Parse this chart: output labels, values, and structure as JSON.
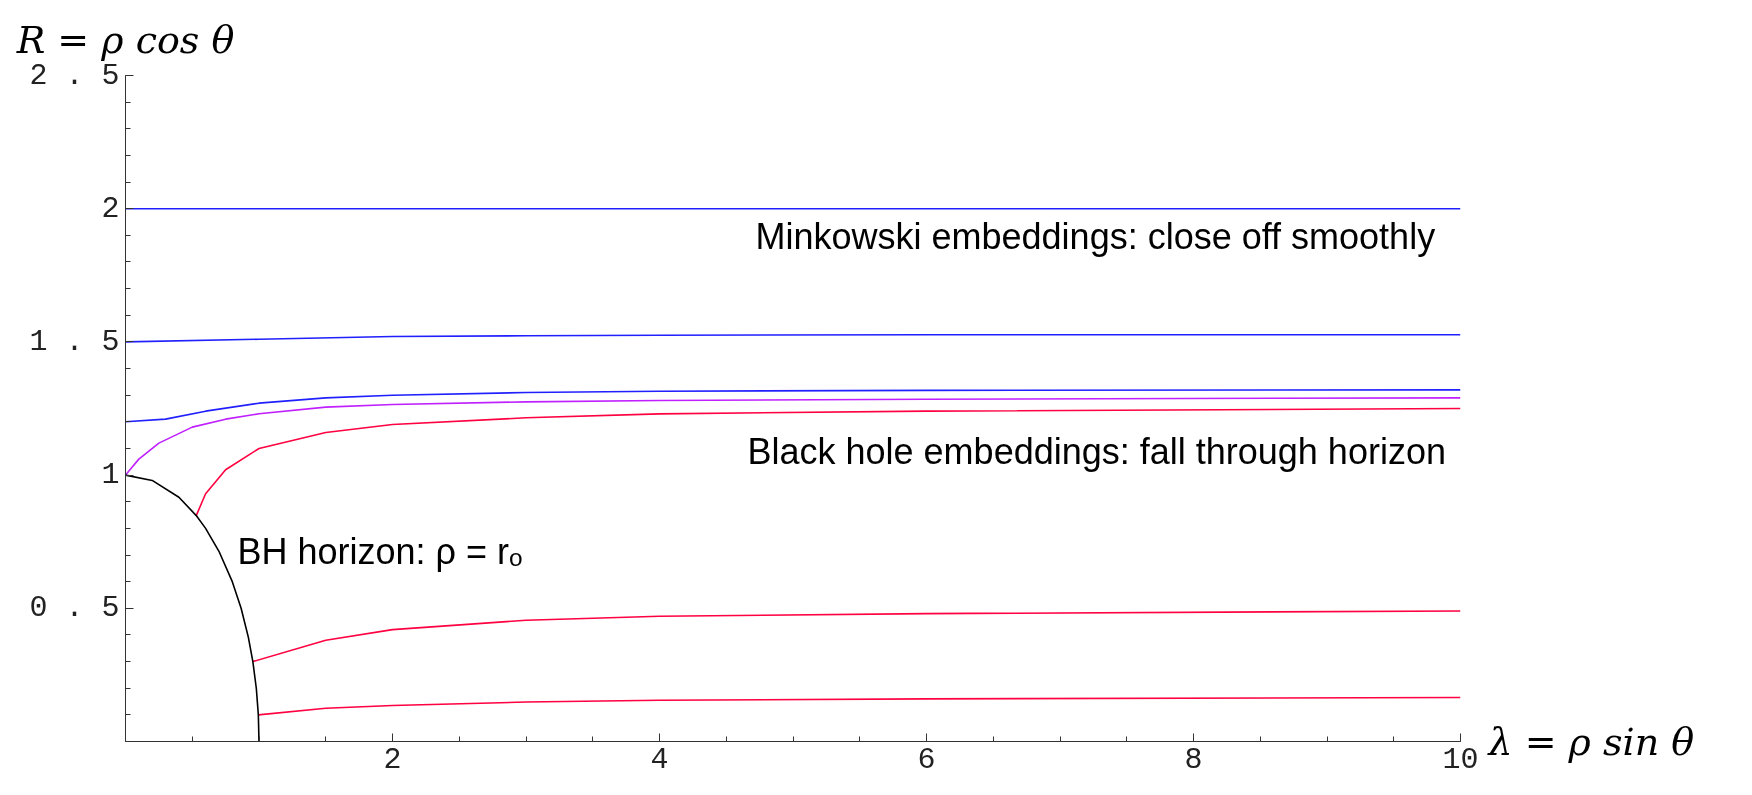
{
  "chart_data": {
    "type": "line",
    "xlabel": "λ = ρ sin θ",
    "ylabel": "R = ρ cos θ",
    "xlim": [
      0,
      10
    ],
    "ylim": [
      0,
      2.5
    ],
    "xticks": [
      2,
      4,
      6,
      8,
      10
    ],
    "yticks": [
      {
        "value": 0.5,
        "label": "0 . 5"
      },
      1,
      {
        "value": 1.5,
        "label": "1 . 5"
      },
      2,
      {
        "value": 2.5,
        "label": "2 . 5"
      }
    ],
    "grid": false,
    "marker": "none",
    "line_style": "solid",
    "series": [
      {
        "color": "#2020ff",
        "x": [
          0,
          1,
          2,
          4,
          6,
          10
        ],
        "values": [
          2.0,
          2.0,
          2.0,
          2.0,
          2.0,
          2.0
        ]
      },
      {
        "color": "#2020ff",
        "x": [
          0,
          1,
          2,
          3,
          4,
          6,
          10
        ],
        "values": [
          1.5,
          1.51,
          1.52,
          1.523,
          1.525,
          1.527,
          1.527
        ]
      },
      {
        "color": "#2020ff",
        "x": [
          0,
          0.3,
          0.6,
          1,
          1.5,
          2,
          3,
          4,
          6,
          10
        ],
        "values": [
          1.2,
          1.21,
          1.24,
          1.27,
          1.29,
          1.3,
          1.31,
          1.315,
          1.318,
          1.32
        ]
      },
      {
        "color": "#c020ff",
        "x": [
          0,
          0.1,
          0.25,
          0.5,
          0.75,
          1,
          1.5,
          2,
          3,
          4,
          6,
          10
        ],
        "values": [
          1.0,
          1.06,
          1.12,
          1.18,
          1.21,
          1.23,
          1.255,
          1.265,
          1.275,
          1.28,
          1.285,
          1.29
        ]
      },
      {
        "color": "#ff0040",
        "x": [
          0.53,
          0.6,
          0.75,
          1,
          1.5,
          2,
          3,
          4,
          6,
          10
        ],
        "values": [
          0.848,
          0.93,
          1.02,
          1.1,
          1.16,
          1.19,
          1.215,
          1.23,
          1.24,
          1.25
        ]
      },
      {
        "color": "#ff0040",
        "x": [
          0.954,
          1.5,
          2,
          3,
          4,
          6,
          10
        ],
        "values": [
          0.3,
          0.38,
          0.42,
          0.455,
          0.47,
          0.48,
          0.49
        ]
      },
      {
        "color": "#ff0040",
        "x": [
          0.995,
          1.5,
          2,
          3,
          4,
          6,
          10
        ],
        "values": [
          0.1,
          0.125,
          0.135,
          0.148,
          0.155,
          0.16,
          0.165
        ]
      },
      {
        "color": "#000000",
        "x": [
          0,
          0.2,
          0.4,
          0.53,
          0.6,
          0.7,
          0.8,
          0.866,
          0.92,
          0.954,
          0.98,
          0.995,
          1.0
        ],
        "values": [
          1.0,
          0.98,
          0.917,
          0.848,
          0.8,
          0.714,
          0.6,
          0.5,
          0.392,
          0.3,
          0.199,
          0.1,
          0.0
        ]
      }
    ],
    "annotations": [
      "Minkowski embeddings: close off smoothly",
      "Black hole embeddings: fall through horizon",
      "BH horizon: ρ = rₒ"
    ]
  }
}
